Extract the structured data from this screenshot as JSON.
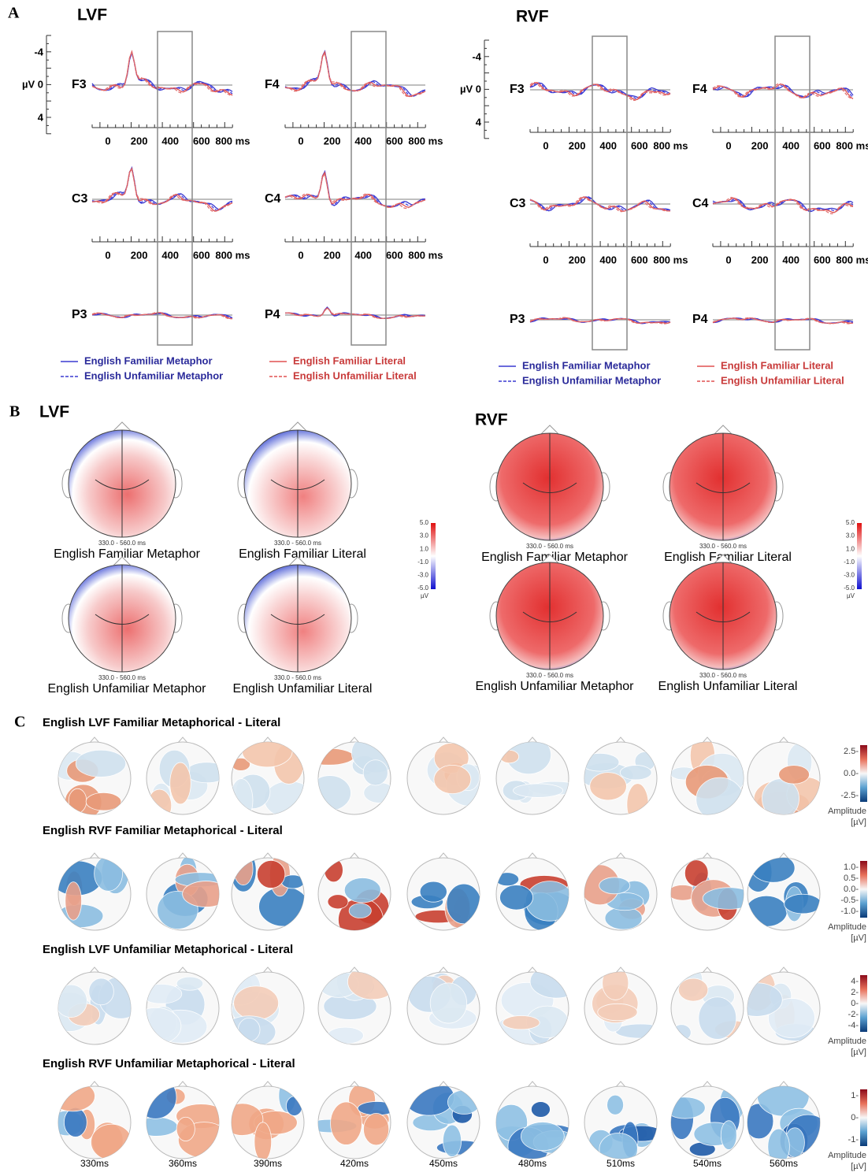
{
  "panel_a": {
    "label": "A",
    "y_axis_labels": [
      "-4",
      "µV 0",
      "4"
    ],
    "x_tick_labels": [
      "0",
      "200",
      "400",
      "600",
      "800 ms"
    ],
    "lvf": {
      "title": "LVF",
      "electrodes": [
        "F3",
        "F4",
        "C3",
        "C4",
        "P3",
        "P4"
      ],
      "legend": [
        "English Familiar Metaphor",
        "English Unfamiliar Metaphor",
        "English Familiar Literal",
        "English Unfamiliar Literal"
      ]
    },
    "rvf": {
      "title": "RVF",
      "electrodes": [
        "F3",
        "F4",
        "C3",
        "C4",
        "P3",
        "P4"
      ],
      "legend": [
        "English Familiar Metaphor",
        "English Unfamiliar Metaphor",
        "English Familiar Literal",
        "English Unfamiliar Literal"
      ]
    }
  },
  "panel_b": {
    "label": "B",
    "time_window": "330.0 - 560.0 ms",
    "colorbar_ticks": [
      "5.0",
      "3.0",
      "1.0",
      "-1.0",
      "-3.0",
      "-5.0"
    ],
    "colorbar_unit": "µV",
    "lvf": {
      "title": "LVF",
      "maps": [
        "English Familiar Metaphor",
        "English Familiar Literal",
        "English Unfamiliar Metaphor",
        "English Unfamiliar Literal"
      ]
    },
    "rvf": {
      "title": "RVF",
      "maps": [
        "English Familiar Metaphor",
        "English Familiar Literal",
        "English Unfamiliar Metaphor",
        "English Unfamiliar Literal"
      ]
    }
  },
  "panel_c": {
    "label": "C",
    "times": [
      "330ms",
      "360ms",
      "390ms",
      "420ms",
      "450ms",
      "480ms",
      "510ms",
      "540ms",
      "560ms"
    ],
    "amplitude_label": "Amplitude",
    "unit_label": "[µV]",
    "rows": [
      {
        "title": "English LVF Familiar Metaphorical - Literal",
        "colorbar_ticks": [
          "2.5-",
          "0.0-",
          "-2.5-"
        ]
      },
      {
        "title": "English RVF Familiar Metaphorical - Literal",
        "colorbar_ticks": [
          "1.0-",
          "0.5-",
          "0.0-",
          "-0.5-",
          "-1.0-"
        ]
      },
      {
        "title": "English LVF Unfamiliar Metaphorical - Literal",
        "colorbar_ticks": [
          "4-",
          "2-",
          "0-",
          "-2-",
          "-4-"
        ]
      },
      {
        "title": "English RVF Unfamiliar Metaphorical - Literal",
        "colorbar_ticks": [
          "1-",
          "0-",
          "-1-"
        ]
      }
    ]
  }
}
